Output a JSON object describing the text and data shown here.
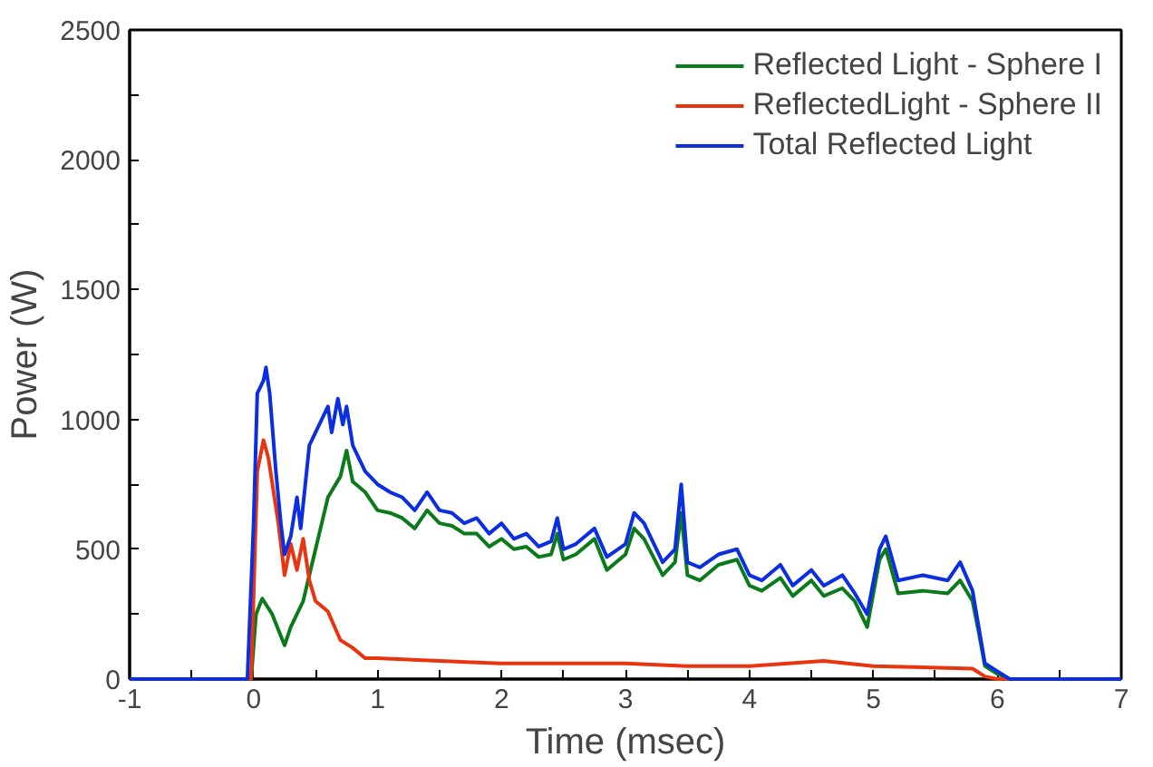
{
  "chart_data": {
    "type": "line",
    "xlabel": "Time (msec)",
    "ylabel": "Power (W)",
    "xlim": [
      -1,
      7
    ],
    "ylim": [
      0,
      2500
    ],
    "xticks": [
      -1,
      {
        "value": -0.5,
        "label": null
      },
      0,
      {
        "value": 0.5,
        "label": null
      },
      1,
      {
        "value": 1.5,
        "label": null
      },
      2,
      {
        "value": 2.5,
        "label": null
      },
      3,
      {
        "value": 3.5,
        "label": null
      },
      4,
      {
        "value": 4.5,
        "label": null
      },
      5,
      {
        "value": 5.5,
        "label": null
      },
      6,
      {
        "value": 6.5,
        "label": null
      },
      7
    ],
    "yticks": [
      0,
      {
        "value": 250,
        "label": null
      },
      500,
      {
        "value": 750,
        "label": null
      },
      1000,
      {
        "value": 1250,
        "label": null
      },
      1500,
      {
        "value": 1750,
        "label": null
      },
      2000,
      {
        "value": 2250,
        "label": null
      },
      2500
    ],
    "grid": false,
    "legend": "top right",
    "marker": "none",
    "line_style": "solid",
    "series": [
      {
        "name": "Reflected Light - Sphere I",
        "color": "#0a7a1a",
        "x": [
          -1,
          -0.5,
          -0.02,
          0.02,
          0.07,
          0.15,
          0.25,
          0.3,
          0.4,
          0.5,
          0.55,
          0.6,
          0.7,
          0.75,
          0.8,
          0.9,
          1.0,
          1.1,
          1.2,
          1.3,
          1.4,
          1.5,
          1.6,
          1.7,
          1.8,
          1.9,
          2.0,
          2.1,
          2.2,
          2.3,
          2.4,
          2.45,
          2.5,
          2.6,
          2.75,
          2.85,
          3.0,
          3.07,
          3.15,
          3.3,
          3.4,
          3.45,
          3.5,
          3.6,
          3.75,
          3.9,
          4.0,
          4.1,
          4.25,
          4.35,
          4.5,
          4.6,
          4.75,
          4.85,
          4.95,
          5.05,
          5.1,
          5.2,
          5.4,
          5.6,
          5.7,
          5.8,
          5.85,
          5.9,
          6.0,
          6.1,
          7
        ],
        "values": [
          0,
          0,
          0,
          250,
          310,
          250,
          130,
          200,
          300,
          500,
          600,
          700,
          780,
          880,
          760,
          720,
          650,
          640,
          620,
          580,
          650,
          600,
          590,
          560,
          560,
          510,
          540,
          500,
          510,
          470,
          480,
          560,
          460,
          480,
          540,
          420,
          480,
          580,
          540,
          400,
          450,
          640,
          400,
          380,
          440,
          460,
          360,
          340,
          390,
          320,
          380,
          320,
          350,
          300,
          200,
          460,
          500,
          330,
          340,
          330,
          380,
          300,
          180,
          50,
          20,
          0,
          0
        ]
      },
      {
        "name": "ReflectedLight - Sphere II",
        "color": "#e8340f",
        "x": [
          -1,
          -0.5,
          -0.02,
          0.03,
          0.08,
          0.12,
          0.2,
          0.25,
          0.3,
          0.35,
          0.4,
          0.45,
          0.5,
          0.6,
          0.7,
          0.8,
          0.9,
          1.0,
          1.5,
          2.0,
          2.5,
          3.0,
          3.5,
          4.0,
          4.6,
          5.0,
          5.8,
          5.9,
          6.0,
          7
        ],
        "values": [
          0,
          0,
          0,
          800,
          920,
          850,
          600,
          400,
          520,
          420,
          540,
          380,
          300,
          260,
          150,
          120,
          80,
          80,
          70,
          60,
          60,
          60,
          50,
          50,
          70,
          50,
          40,
          10,
          0,
          0
        ]
      },
      {
        "name": "Total Reflected Light",
        "color": "#0a2ee0",
        "x": [
          -1,
          -0.5,
          -0.05,
          0.0,
          0.03,
          0.08,
          0.1,
          0.13,
          0.18,
          0.22,
          0.25,
          0.3,
          0.35,
          0.38,
          0.45,
          0.5,
          0.55,
          0.6,
          0.63,
          0.68,
          0.72,
          0.75,
          0.8,
          0.85,
          0.9,
          1.0,
          1.1,
          1.2,
          1.3,
          1.4,
          1.5,
          1.6,
          1.7,
          1.8,
          1.9,
          2.0,
          2.1,
          2.2,
          2.3,
          2.4,
          2.45,
          2.5,
          2.6,
          2.75,
          2.85,
          3.0,
          3.07,
          3.15,
          3.3,
          3.4,
          3.45,
          3.5,
          3.6,
          3.75,
          3.9,
          4.0,
          4.1,
          4.25,
          4.35,
          4.5,
          4.6,
          4.75,
          4.85,
          4.95,
          5.05,
          5.1,
          5.2,
          5.4,
          5.6,
          5.7,
          5.8,
          5.85,
          5.9,
          6.0,
          6.1,
          7
        ],
        "values": [
          0,
          0,
          0,
          600,
          1100,
          1150,
          1200,
          1100,
          800,
          600,
          480,
          550,
          700,
          580,
          900,
          950,
          1000,
          1050,
          950,
          1080,
          980,
          1050,
          900,
          850,
          800,
          750,
          720,
          700,
          650,
          720,
          650,
          640,
          600,
          620,
          560,
          600,
          540,
          560,
          510,
          530,
          620,
          500,
          520,
          580,
          470,
          520,
          640,
          600,
          450,
          500,
          750,
          450,
          430,
          480,
          500,
          400,
          380,
          440,
          360,
          420,
          360,
          400,
          330,
          250,
          500,
          550,
          380,
          400,
          380,
          450,
          340,
          200,
          60,
          30,
          0,
          0
        ]
      }
    ]
  }
}
